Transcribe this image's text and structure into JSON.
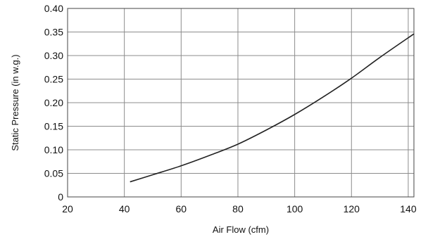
{
  "chart_data": {
    "type": "line",
    "xlabel": "Air Flow (cfm)",
    "ylabel": "Static Pressure (in w.g.)",
    "xlim": [
      20,
      142
    ],
    "ylim": [
      0,
      0.4
    ],
    "xticks": [
      "20",
      "40",
      "60",
      "80",
      "100",
      "120",
      "140"
    ],
    "yticks": [
      "0",
      "0.05",
      "0.10",
      "0.15",
      "0.20",
      "0.25",
      "0.30",
      "0.35",
      "0.40"
    ],
    "grid": true,
    "series": [
      {
        "x": [
          42,
          50,
          60,
          70,
          80,
          90,
          100,
          110,
          120,
          130,
          142
        ],
        "y": [
          0.032,
          0.047,
          0.066,
          0.088,
          0.112,
          0.142,
          0.175,
          0.212,
          0.252,
          0.296,
          0.346
        ]
      }
    ]
  },
  "colors": {
    "line": "#222222",
    "grid": "#8c8c8c",
    "frame": "#444444"
  }
}
